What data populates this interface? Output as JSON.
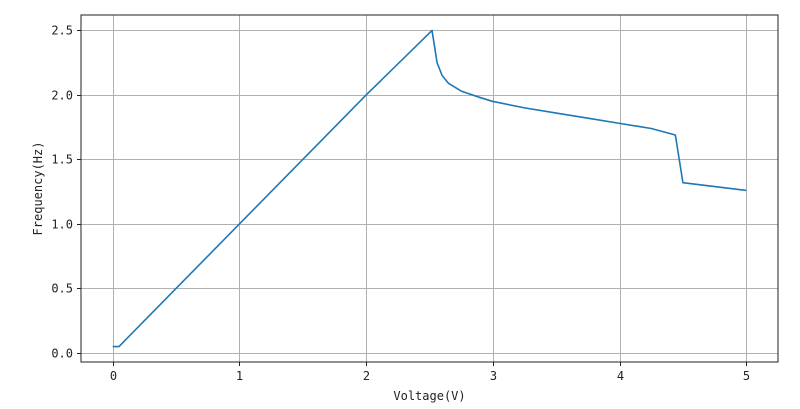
{
  "chart_data": {
    "type": "line",
    "xlabel": "Voltage(V)",
    "ylabel": "Frequency(Hz)",
    "xlim": [
      -0.25,
      5.25
    ],
    "ylim": [
      -0.07,
      2.62
    ],
    "xticks": [
      0,
      1,
      2,
      3,
      4,
      5
    ],
    "yticks": [
      0.0,
      0.5,
      1.0,
      1.5,
      2.0,
      2.5
    ],
    "xtick_labels": [
      "0",
      "1",
      "2",
      "3",
      "4",
      "5"
    ],
    "ytick_labels": [
      "0.0",
      "0.5",
      "1.0",
      "1.5",
      "2.0",
      "2.5"
    ],
    "grid": true,
    "series": [
      {
        "color": "#1f77b4",
        "x": [
          0.0,
          0.05,
          0.5,
          1.0,
          1.5,
          2.0,
          2.52,
          2.56,
          2.6,
          2.65,
          2.75,
          2.9,
          3.0,
          3.25,
          3.5,
          3.75,
          4.0,
          4.25,
          4.44,
          4.5,
          4.75,
          5.0
        ],
        "y": [
          0.05,
          0.05,
          0.5,
          1.0,
          1.5,
          2.0,
          2.5,
          2.25,
          2.15,
          2.09,
          2.03,
          1.98,
          1.95,
          1.9,
          1.86,
          1.82,
          1.78,
          1.74,
          1.69,
          1.32,
          1.29,
          1.26
        ]
      }
    ]
  }
}
